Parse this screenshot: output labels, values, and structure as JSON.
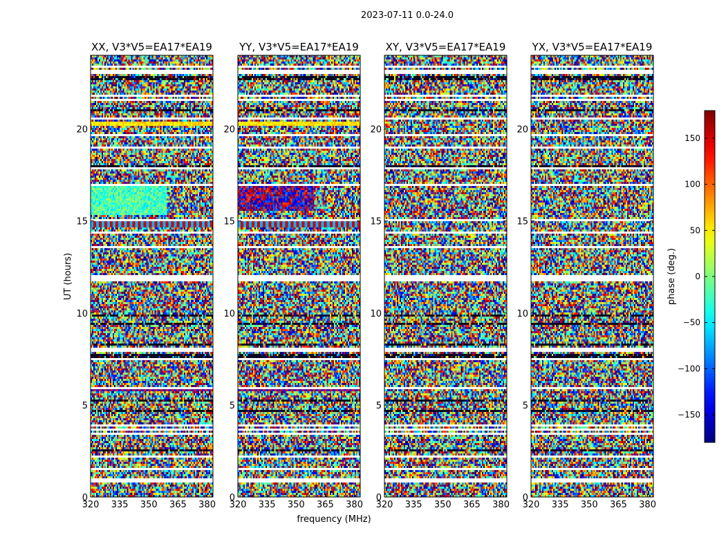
{
  "figure": {
    "title": "2023-07-11 0.0-24.0"
  },
  "chart_data": {
    "type": "heatmap",
    "description": "Dynamic phase spectra (waterfall) per polarization product",
    "xlabel": "frequency (MHz)",
    "ylabel": "UT (hours)",
    "xlim": [
      320,
      383
    ],
    "ylim": [
      0,
      24
    ],
    "xticks": [
      320,
      335,
      350,
      365,
      380
    ],
    "yticks": [
      0,
      5,
      10,
      15,
      20
    ],
    "panels": [
      {
        "title": "XX, V3*V5=EA17*EA19",
        "feature": "xx"
      },
      {
        "title": "YY, V3*V5=EA17*EA19",
        "feature": "yy"
      },
      {
        "title": "XY, V3*V5=EA17*EA19",
        "feature": "xy"
      },
      {
        "title": "YX, V3*V5=EA17*EA19",
        "feature": "yx"
      }
    ],
    "colorbar": {
      "label": "phase (deg.)",
      "range": [
        -180,
        180
      ],
      "ticks": [
        150,
        100,
        50,
        0,
        -50,
        -100,
        -150
      ],
      "tick_labels": [
        "150",
        "100",
        "50",
        "0",
        "−50",
        "−100",
        "−150"
      ],
      "colormap": "jet"
    },
    "flagged_hours": [
      0.9,
      1.55,
      2.2,
      3.4,
      3.65,
      3.85,
      5.9,
      7.5,
      8.0,
      11.75,
      11.95,
      13.6,
      14.4,
      15.05,
      17.0,
      17.85,
      19.0,
      19.7,
      20.55,
      21.55,
      21.8,
      23.1,
      23.35
    ]
  }
}
